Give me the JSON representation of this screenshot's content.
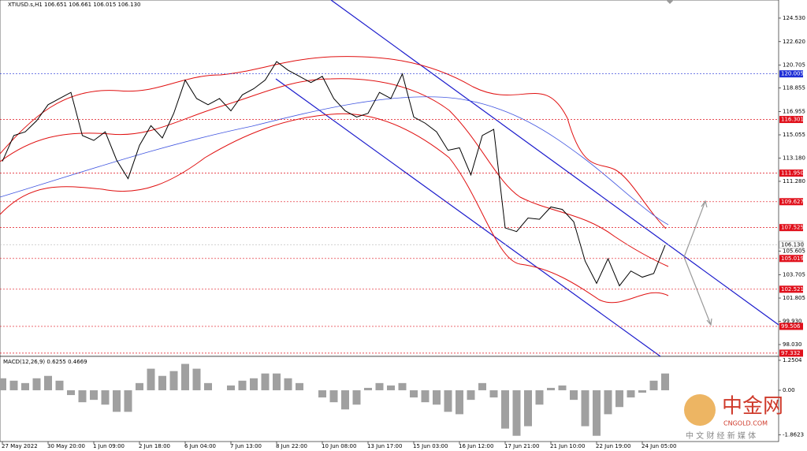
{
  "chart_data": [
    {
      "type": "line",
      "title": "XTIUSD.s,H1  106.651 106.661 106.015 106.130",
      "categories": [
        "27 May 2022",
        null,
        null,
        null,
        "30 May 20:00",
        null,
        null,
        null,
        "1 Jun 09:00",
        null,
        null,
        null,
        "2 Jun 18:00",
        null,
        null,
        null,
        "6 Jun 04:00",
        null,
        null,
        null,
        "7 Jun 13:00",
        null,
        null,
        null,
        "8 Jun 22:00",
        null,
        null,
        null,
        "10 Jun 08:00",
        null,
        null,
        null,
        "13 Jun 17:00",
        null,
        null,
        null,
        "15 Jun 03:00",
        null,
        null,
        null,
        "16 Jun 12:00",
        null,
        null,
        null,
        "17 Jun 21:00",
        null,
        null,
        null,
        "21 Jun 10:00",
        null,
        null,
        null,
        "22 Jun 19:00",
        null,
        null,
        null,
        "24 Jun 05:00",
        null,
        null
      ],
      "series": [
        {
          "color": "#000000",
          "values": [
            112.9,
            115.0,
            115.3,
            116.2,
            117.5,
            118.0,
            118.5,
            115.0,
            114.6,
            115.3,
            113.0,
            111.5,
            114.2,
            115.8,
            114.8,
            116.8,
            119.5,
            118.0,
            117.5,
            118.0,
            117.0,
            118.3,
            118.8,
            119.5,
            121.0,
            120.3,
            119.8,
            119.3,
            119.8,
            118.0,
            117.0,
            116.5,
            116.8,
            118.5,
            118.0,
            120.0,
            116.5,
            116.0,
            115.3,
            113.8,
            114.0,
            111.8,
            115.0,
            115.5,
            107.5,
            107.2,
            108.3,
            108.2,
            109.2,
            109.0,
            108.0,
            104.8,
            103.0,
            105.0,
            102.8,
            104.0,
            103.5,
            103.8,
            106.1
          ]
        }
      ],
      "ylim": [
        97.07,
        126.0
      ],
      "yticks": [
        {
          "value": 124.53,
          "label": "124.530"
        },
        {
          "value": 122.62,
          "label": "122.620"
        },
        {
          "value": 120.705,
          "label": "120.705"
        },
        {
          "value": 118.855,
          "label": "118.855"
        },
        {
          "value": 116.955,
          "label": "116.955"
        },
        {
          "value": 115.055,
          "label": "115.055"
        },
        {
          "value": 113.18,
          "label": "113.180"
        },
        {
          "value": 111.28,
          "label": "111.280"
        },
        {
          "value": 105.605,
          "label": "105.605"
        },
        {
          "value": 103.705,
          "label": "103.705"
        },
        {
          "value": 101.805,
          "label": "101.805"
        },
        {
          "value": 99.93,
          "label": "99.930"
        },
        {
          "value": 98.03,
          "label": "98.030"
        }
      ],
      "levels": [
        {
          "value": 120.005,
          "label": "120.005",
          "color": "#1f2fd6"
        },
        {
          "value": 116.301,
          "label": "116.301",
          "color": "#e0101b"
        },
        {
          "value": 111.95,
          "label": "111.950",
          "color": "#e0101b"
        },
        {
          "value": 109.627,
          "label": "109.627",
          "color": "#e0101b"
        },
        {
          "value": 107.525,
          "label": "107.525",
          "color": "#e0101b"
        },
        {
          "value": 106.13,
          "label": "106.130",
          "color": "#ffffff"
        },
        {
          "value": 105.019,
          "label": "105.019",
          "color": "#e0101b"
        },
        {
          "value": 102.521,
          "label": "102.521",
          "color": "#e0101b"
        },
        {
          "value": 99.506,
          "label": "99.506",
          "color": "#e0101b"
        },
        {
          "value": 97.332,
          "label": "97.332",
          "color": "#e0101b"
        }
      ]
    },
    {
      "type": "bar",
      "title": "MACD(12,26,9) 0.6255 0.4669",
      "color": "#a0a0a0",
      "values": [
        0.5,
        0.4,
        0.3,
        0.5,
        0.6,
        0.4,
        -0.2,
        -0.5,
        -0.4,
        -0.6,
        -0.9,
        -0.9,
        0.3,
        0.9,
        0.6,
        0.8,
        1.1,
        0.9,
        0.3,
        0.0,
        0.2,
        0.4,
        0.5,
        0.7,
        0.7,
        0.5,
        0.3,
        0.0,
        -0.3,
        -0.5,
        -0.8,
        -0.6,
        0.1,
        0.3,
        0.2,
        0.3,
        -0.3,
        -0.5,
        -0.6,
        -0.9,
        -1.0,
        -0.4,
        0.3,
        -0.3,
        -1.6,
        -1.9,
        -1.5,
        -0.6,
        0.1,
        0.2,
        -0.4,
        -1.5,
        -1.9,
        -1.0,
        -0.7,
        -0.3,
        -0.1,
        0.4,
        0.7
      ],
      "ylim": [
        -2.14,
        1.414
      ],
      "yticks": [
        {
          "value": 1.2504,
          "label": "1.2504"
        },
        {
          "value": 0,
          "label": "0.00"
        },
        {
          "value": -1.8623,
          "label": "-1.8623"
        }
      ]
    }
  ],
  "watermark": {
    "name": "中金网",
    "site": "CNGOLD.COM",
    "slogan": "中 文 财 经 新 媒 体"
  }
}
